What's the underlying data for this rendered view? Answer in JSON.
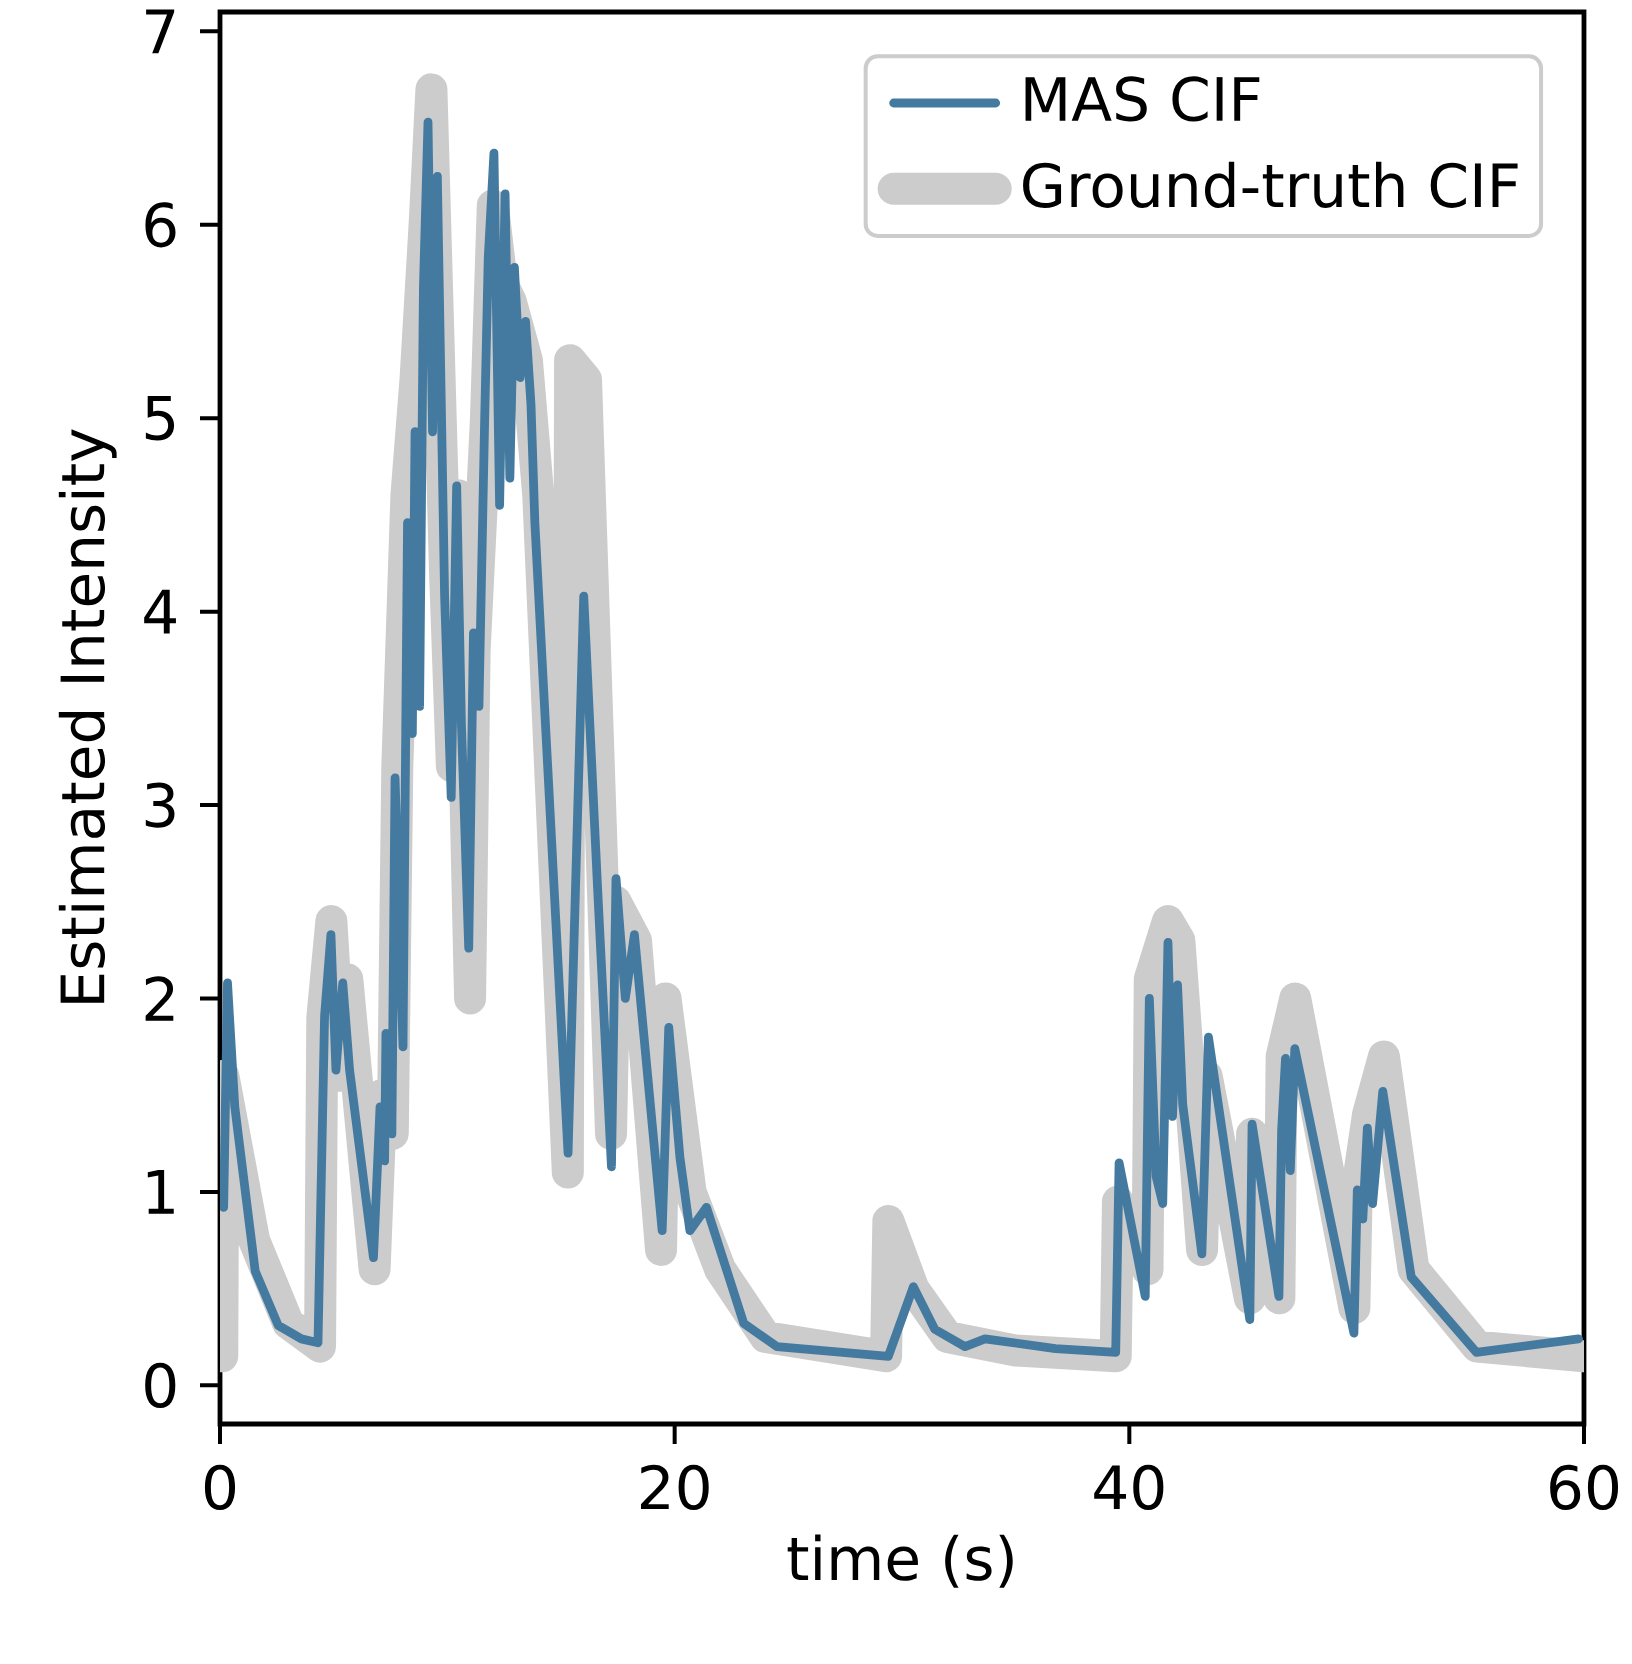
{
  "chart_data": {
    "type": "line",
    "xlabel": "time (s)",
    "ylabel": "Estimated Intensity",
    "xlim": [
      0,
      60
    ],
    "ylim": [
      -0.2,
      7.1
    ],
    "xticks": [
      0,
      20,
      40,
      60
    ],
    "yticks": [
      0,
      1,
      2,
      3,
      4,
      5,
      6,
      7
    ],
    "legend": "top right",
    "grid": false,
    "marker": "none",
    "line_style": "solid",
    "series": [
      {
        "name": "MAS CIF",
        "color": "#447a9f",
        "x": [
          0.16,
          0.33,
          0.65,
          1.55,
          2.56,
          3.58,
          4.31,
          4.6,
          4.88,
          5.1,
          5.4,
          5.7,
          6.75,
          7.04,
          7.24,
          7.3,
          7.56,
          7.7,
          8.05,
          8.25,
          8.46,
          8.58,
          8.78,
          8.95,
          9.15,
          9.35,
          9.56,
          9.88,
          10.17,
          10.41,
          10.62,
          10.94,
          11.15,
          11.39,
          11.64,
          11.8,
          12.05,
          12.3,
          12.54,
          12.75,
          12.95,
          13.2,
          13.44,
          13.68,
          13.85,
          15.31,
          16.0,
          16.61,
          17.22,
          17.42,
          17.83,
          18.23,
          19.45,
          19.74,
          20.23,
          20.67,
          21.4,
          23.04,
          24.5,
          29.4,
          30.5,
          31.44,
          32.77,
          33.65,
          36.75,
          39.4,
          39.55,
          40.7,
          40.88,
          41.18,
          41.47,
          41.7,
          41.9,
          42.12,
          42.35,
          43.19,
          43.48,
          45.3,
          45.4,
          46.58,
          46.7,
          46.87,
          47.08,
          47.28,
          49.88,
          50.03,
          50.27,
          50.47,
          50.7,
          51.15,
          52.4,
          55.27,
          59.76
        ],
        "values": [
          0.92,
          2.08,
          1.44,
          0.59,
          0.31,
          0.24,
          0.22,
          1.91,
          2.33,
          1.63,
          2.08,
          1.63,
          0.66,
          1.44,
          1.16,
          1.82,
          1.3,
          3.14,
          1.75,
          4.46,
          3.37,
          4.93,
          3.51,
          5.68,
          6.53,
          4.93,
          6.25,
          4.08,
          3.04,
          4.65,
          3.42,
          2.26,
          3.89,
          3.51,
          4.98,
          5.83,
          6.37,
          4.55,
          6.16,
          4.69,
          5.78,
          5.21,
          5.5,
          5.07,
          4.46,
          1.2,
          4.08,
          2.57,
          1.13,
          2.62,
          2.0,
          2.33,
          0.8,
          1.85,
          1.18,
          0.8,
          0.92,
          0.32,
          0.2,
          0.15,
          0.51,
          0.29,
          0.2,
          0.24,
          0.19,
          0.17,
          1.15,
          0.46,
          2.0,
          1.08,
          0.94,
          2.29,
          1.39,
          2.07,
          1.45,
          0.68,
          1.8,
          0.34,
          1.35,
          0.46,
          1.32,
          1.69,
          1.11,
          1.74,
          0.27,
          1.01,
          0.86,
          1.33,
          0.94,
          1.52,
          0.56,
          0.17,
          0.24
        ]
      },
      {
        "name": "Ground-truth CIF",
        "color": "#cccccc",
        "x": [
          0.1,
          0.15,
          1.5,
          3,
          4.4,
          4.5,
          4.9,
          5.3,
          5.6,
          6.8,
          7.1,
          7.6,
          7.8,
          8.2,
          8.6,
          9.0,
          9.3,
          9.9,
          10.2,
          10.5,
          11.0,
          11.2,
          11.7,
          12.0,
          12.4,
          12.8,
          13.5,
          14.0,
          15.3,
          15.4,
          16.1,
          17.2,
          17.4,
          18.3,
          19.4,
          19.6,
          20.7,
          22,
          24,
          29.3,
          29.4,
          30.5,
          32,
          35,
          39.4,
          39.5,
          40.8,
          40.9,
          41.7,
          42.2,
          43.2,
          43.4,
          45.3,
          45.4,
          46.6,
          46.7,
          47.3,
          49.9,
          50.0,
          50.5,
          51.2,
          52.5,
          55.3,
          60
        ],
        "values": [
          0.15,
          1.6,
          0.75,
          0.32,
          0.2,
          1.9,
          2.4,
          1.6,
          2.1,
          0.6,
          1.5,
          1.3,
          3.2,
          4.6,
          5.2,
          6.0,
          6.7,
          4.2,
          3.2,
          4.6,
          2.0,
          3.8,
          5.0,
          6.1,
          5.7,
          5.6,
          5.3,
          4.6,
          1.1,
          5.3,
          5.2,
          1.3,
          2.5,
          2.3,
          0.7,
          2.0,
          1.0,
          0.6,
          0.25,
          0.15,
          0.85,
          0.5,
          0.25,
          0.18,
          0.15,
          0.95,
          0.6,
          2.1,
          2.4,
          2.3,
          0.7,
          1.6,
          0.45,
          1.3,
          0.45,
          1.7,
          2.0,
          0.4,
          1.0,
          1.4,
          1.7,
          0.6,
          0.2,
          0.15
        ]
      }
    ]
  }
}
